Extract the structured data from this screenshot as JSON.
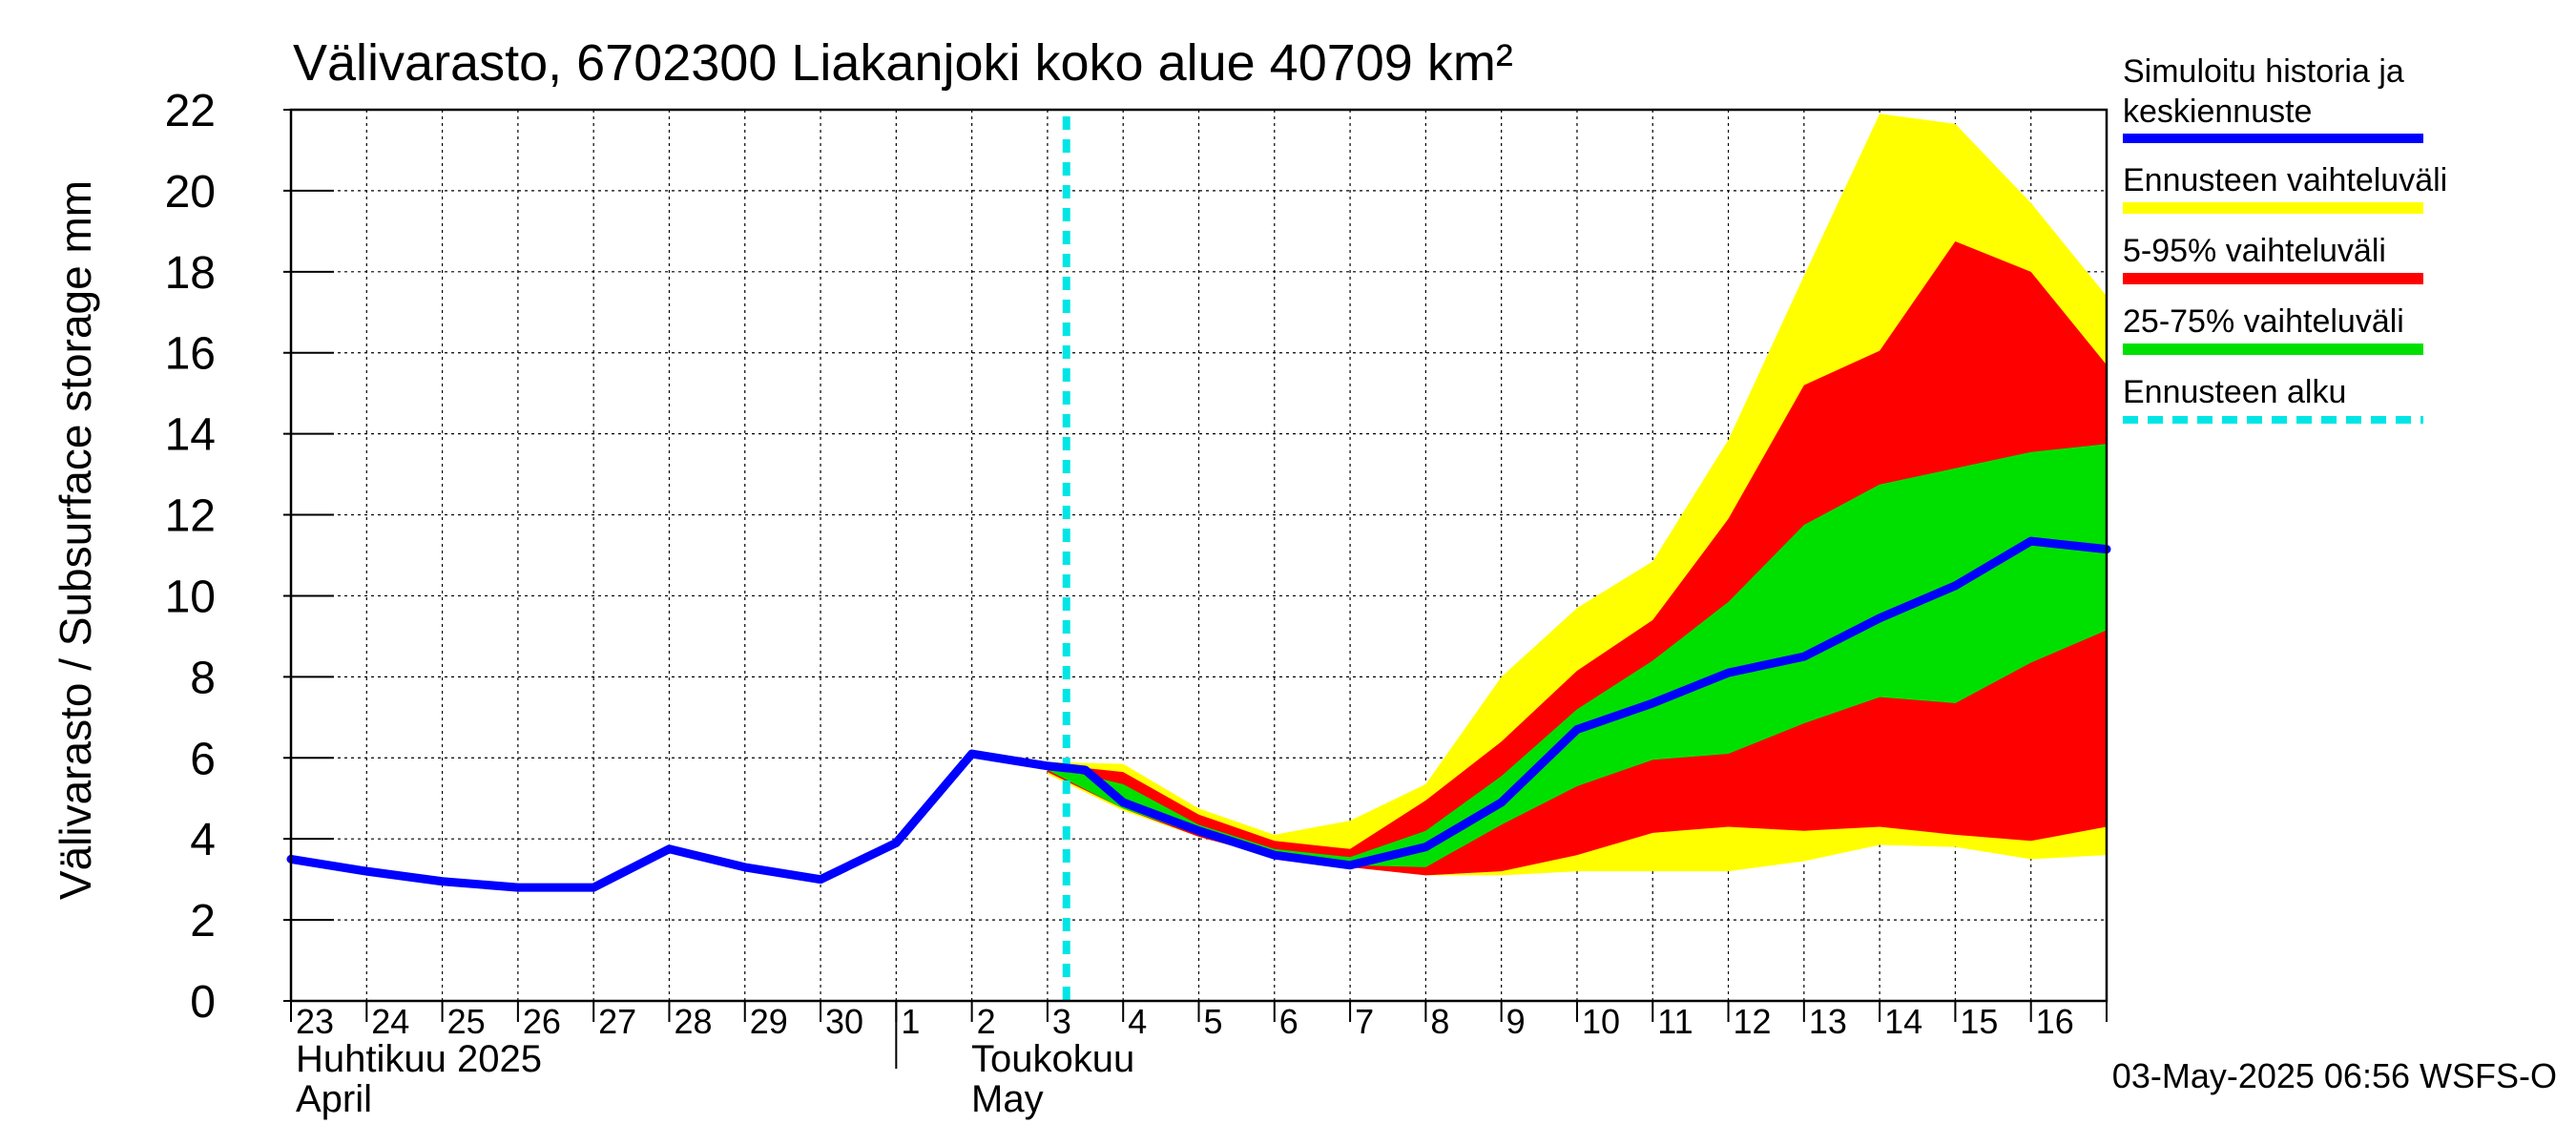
{
  "chart_data": {
    "type": "area",
    "title": "Välivarasto, 6702300 Liakanjoki koko alue 40709 km²",
    "ylabel": "Välivarasto / Subsurface storage  mm",
    "ylim": [
      0,
      22
    ],
    "yticks": [
      0,
      2,
      4,
      6,
      8,
      10,
      12,
      14,
      16,
      18,
      20,
      22
    ],
    "grid": true,
    "xlim_day_index": [
      -0.5,
      23.5
    ],
    "x_ticks": [
      "23",
      "24",
      "25",
      "26",
      "27",
      "28",
      "29",
      "30",
      "1",
      "2",
      "3",
      "4",
      "5",
      "6",
      "7",
      "8",
      "9",
      "10",
      "11",
      "12",
      "13",
      "14",
      "15",
      "16"
    ],
    "month_labels": [
      {
        "label_fi": "Huhtikuu  2025",
        "label_en": "April",
        "start_index": 0
      },
      {
        "label_fi": "Toukokuu",
        "label_en": "May",
        "start_index": 8
      }
    ],
    "forecast_start_index": 9.75,
    "history": {
      "name": "Simuloitu historia ja keskiennuste",
      "color": "#0000ff",
      "x": [
        -0.5,
        0.5,
        1.5,
        2.5,
        3.5,
        4.5,
        5.5,
        6.5,
        7.5,
        8.5,
        9.5,
        10,
        10.5,
        11.5,
        12.5,
        13.5,
        14.5,
        15.5,
        16.5,
        17.5,
        18.5,
        19.5,
        20.5,
        21.5,
        22.5,
        23.5
      ],
      "y": [
        3.5,
        3.2,
        2.95,
        2.8,
        2.8,
        3.75,
        3.3,
        3.0,
        3.9,
        6.1,
        5.8,
        5.7,
        4.9,
        4.2,
        3.6,
        3.35,
        3.8,
        4.9,
        6.7,
        7.35,
        8.1,
        8.5,
        9.45,
        10.25,
        11.35,
        11.15
      ]
    },
    "bands": [
      {
        "name": "Ennusteen vaihteluväli",
        "color": "#ffff00",
        "x": [
          9.5,
          10.5,
          11.5,
          12.5,
          13.5,
          14.5,
          15.5,
          16.5,
          17.5,
          18.5,
          19.5,
          20.5,
          21.5,
          22.5,
          23.5
        ],
        "upper": [
          5.9,
          5.85,
          4.75,
          4.1,
          4.45,
          5.35,
          8.0,
          9.7,
          10.85,
          13.85,
          17.9,
          21.9,
          21.65,
          19.7,
          17.4
        ],
        "lower": [
          5.6,
          4.7,
          4.05,
          3.55,
          3.3,
          3.1,
          3.1,
          3.2,
          3.2,
          3.2,
          3.45,
          3.85,
          3.8,
          3.5,
          3.6
        ]
      },
      {
        "name": "5-95% vaihteluväli",
        "color": "#ff0000",
        "x": [
          9.5,
          10.5,
          11.5,
          12.5,
          13.5,
          14.5,
          15.5,
          16.5,
          17.5,
          18.5,
          19.5,
          20.5,
          21.5,
          22.5,
          23.5
        ],
        "upper": [
          5.85,
          5.65,
          4.6,
          3.95,
          3.75,
          4.95,
          6.4,
          8.15,
          9.4,
          11.9,
          15.2,
          16.05,
          18.75,
          18.0,
          15.7
        ],
        "lower": [
          5.65,
          4.75,
          4.05,
          3.55,
          3.3,
          3.1,
          3.2,
          3.6,
          4.15,
          4.3,
          4.2,
          4.3,
          4.1,
          3.95,
          4.3
        ]
      },
      {
        "name": "25-75% vaihteluväli",
        "color": "#00e000",
        "x": [
          9.5,
          10.5,
          11.5,
          12.5,
          13.5,
          14.5,
          15.5,
          16.5,
          17.5,
          18.5,
          19.5,
          20.5,
          21.5,
          22.5,
          23.5
        ],
        "upper": [
          5.8,
          5.35,
          4.35,
          3.75,
          3.55,
          4.2,
          5.55,
          7.2,
          8.4,
          9.85,
          11.75,
          12.75,
          13.15,
          13.55,
          13.75
        ],
        "lower": [
          5.7,
          4.75,
          4.1,
          3.6,
          3.35,
          3.3,
          4.35,
          5.3,
          5.95,
          6.1,
          6.85,
          7.5,
          7.35,
          8.35,
          9.15
        ]
      }
    ],
    "legend": [
      {
        "label": "Simuloitu historia ja keskiennuste",
        "color": "#0000ff",
        "style": "line"
      },
      {
        "label": "Ennusteen vaihteluväli",
        "color": "#ffff00",
        "style": "line"
      },
      {
        "label": "5-95% vaihteluväli",
        "color": "#ff0000",
        "style": "line"
      },
      {
        "label": "25-75% vaihteluväli",
        "color": "#00e000",
        "style": "line"
      },
      {
        "label": "Ennusteen alku",
        "color": "#00e5e5",
        "style": "dashed"
      }
    ],
    "legend_placement": "right",
    "footer": "03-May-2025 06:56 WSFS-O"
  }
}
